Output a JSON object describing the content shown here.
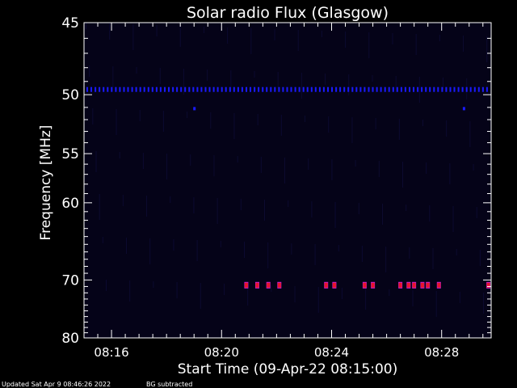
{
  "chart_data": {
    "type": "heatmap",
    "title": "Solar radio Flux (Glasgow)",
    "xlabel": "Start Time (09-Apr-22 08:15:00)",
    "ylabel": "Frequency [MHz]",
    "x_ticks": [
      "08:16",
      "08:20",
      "08:24",
      "08:28"
    ],
    "x_tick_minutes": [
      1,
      5,
      9,
      13
    ],
    "xlim_minutes": [
      0,
      14.8
    ],
    "y_ticks": [
      45,
      50,
      55,
      60,
      70,
      80
    ],
    "ylim": [
      45,
      80
    ],
    "y_scale": "reciprocal",
    "background_color": "#050318",
    "colors": {
      "blue_band": "#1a1aff",
      "burst_red": "#e8142a",
      "burst_magenta": "#c81fd8"
    },
    "features": {
      "blue_band_frequency": 49.6,
      "blue_spots": [
        {
          "t": 4.0,
          "f": 51.1
        },
        {
          "t": 13.8,
          "f": 51.1
        }
      ],
      "red_marks_frequency": 70.8,
      "red_marks_time_minutes": [
        5.9,
        6.3,
        6.7,
        7.1,
        8.8,
        9.1,
        10.2,
        10.5,
        11.5,
        11.8,
        12.0,
        12.3,
        12.5,
        12.9,
        14.7
      ]
    }
  },
  "footer": {
    "updated": "Updated Sat Apr  9 08:46:26 2022",
    "bg": "BG subtracted"
  }
}
